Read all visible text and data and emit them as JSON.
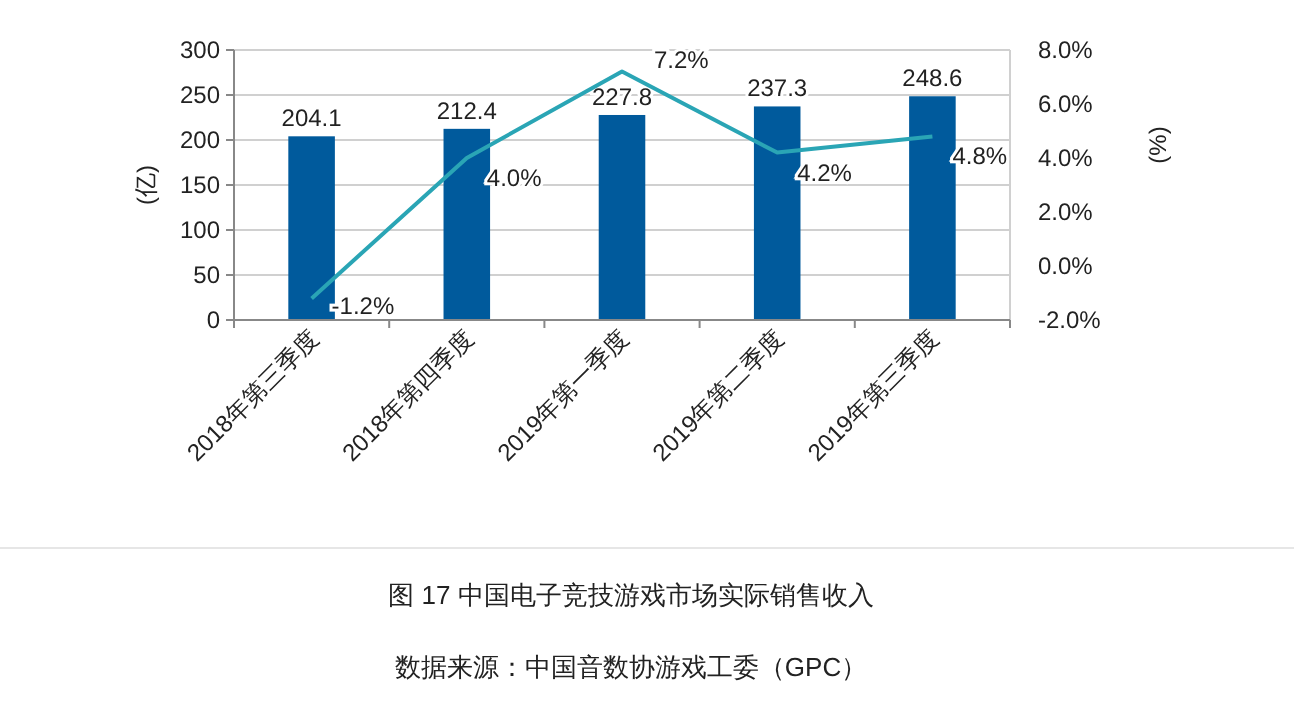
{
  "chart_data": {
    "type": "bar",
    "title": "图 17 中国电子竞技游戏市场实际销售收入",
    "annotations": [
      "数据来源：中国音数协游戏工委（GPC）"
    ],
    "categories": [
      "2018年第三季度",
      "2018年第四季度",
      "2019年第一季度",
      "2019年第二季度",
      "2019年第三季度"
    ],
    "ylabel": "(亿)",
    "y2label": "(%)",
    "series": [
      {
        "color": "#005a9c",
        "values": [
          204.1,
          212.4,
          227.8,
          237.3,
          248.6
        ],
        "value_labels": [
          "204.1",
          "212.4",
          "227.8",
          "237.3",
          "248.6"
        ]
      },
      {
        "type": "line",
        "axis": "y2",
        "color": "#2aa5b5",
        "values": [
          -1.2,
          4.0,
          7.2,
          4.2,
          4.8
        ],
        "value_labels": [
          "-1.2%",
          "4.0%",
          "7.2%",
          "4.2%",
          "4.8%"
        ]
      }
    ],
    "ylim": [
      0,
      300
    ],
    "yticks": [
      0,
      50,
      100,
      150,
      200,
      250,
      300
    ],
    "y2lim": [
      -2,
      8
    ],
    "y2ticks": [
      {
        "value": -2,
        "label": "-2.0%"
      },
      {
        "value": 0,
        "label": "0.0%"
      },
      {
        "value": 2,
        "label": "2.0%"
      },
      {
        "value": 4,
        "label": "4.0%"
      },
      {
        "value": 6,
        "label": "6.0%"
      },
      {
        "value": 8,
        "label": "8.0%"
      }
    ],
    "grid": "y",
    "marker": "none",
    "line_style": "solid"
  }
}
